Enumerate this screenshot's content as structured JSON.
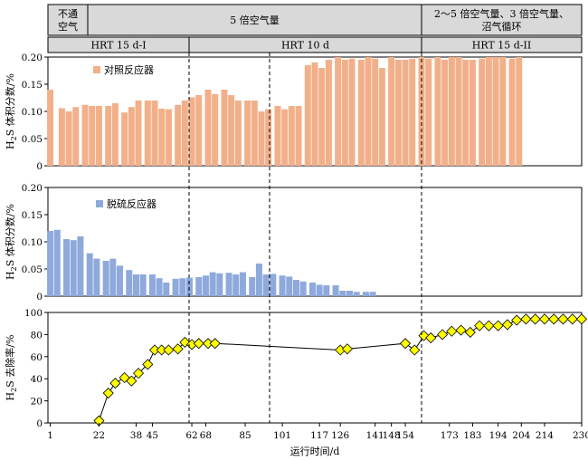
{
  "chart_data": {
    "type": "bar",
    "xlabel": "运行时间/d",
    "x_ticks": [
      1,
      22,
      38,
      45,
      62,
      68,
      85,
      101,
      117,
      126,
      141,
      148,
      154,
      173,
      183,
      194,
      204,
      214,
      230
    ],
    "x_tick_labels": [
      "1",
      "22",
      "38",
      "45",
      "62",
      "68",
      "85",
      "101",
      "117",
      "126",
      "141",
      "148",
      "154",
      "173",
      "183",
      "194",
      "204",
      "214",
      "230"
    ],
    "xlim": [
      0,
      230
    ],
    "condition_headers": [
      "不通\n空气",
      "5 倍空气量",
      "2～5 倍空气量、3 倍空气量、\n沼气循环"
    ],
    "hrt_headers": [
      "HRT 15 d-I",
      "HRT 10 d",
      "HRT 15 d-II"
    ],
    "panels": [
      {
        "type": "bar",
        "ylabel": "H2S 体积分数/%",
        "ylim": [
          0,
          0.2
        ],
        "yticks": [
          "0.20",
          "0.15",
          "0.10",
          "0.05",
          "0"
        ],
        "legend": "对照反应器",
        "color": "#F2B08A",
        "days": [
          1,
          6,
          9,
          12,
          16,
          19,
          22,
          26,
          29,
          33,
          36,
          39,
          43,
          46,
          49,
          52,
          56,
          59,
          62,
          65,
          69,
          72,
          76,
          79,
          82,
          86,
          89,
          92,
          95,
          99,
          102,
          105,
          108,
          112,
          115,
          118,
          121,
          125,
          128,
          131,
          135,
          138,
          141,
          144,
          148,
          151,
          154,
          157,
          161,
          164,
          168,
          171,
          174,
          177,
          180,
          183,
          187,
          190,
          193,
          196,
          200,
          203
        ],
        "values": [
          0.14,
          0.106,
          0.1,
          0.108,
          0.112,
          0.11,
          0.11,
          0.11,
          0.115,
          0.098,
          0.108,
          0.12,
          0.12,
          0.12,
          0.105,
          0.104,
          0.112,
          0.12,
          0.126,
          0.13,
          0.14,
          0.132,
          0.14,
          0.13,
          0.12,
          0.12,
          0.12,
          0.1,
          0.104,
          0.11,
          0.104,
          0.11,
          0.11,
          0.185,
          0.19,
          0.18,
          0.195,
          0.2,
          0.195,
          0.197,
          0.195,
          0.2,
          0.197,
          0.18,
          0.2,
          0.195,
          0.195,
          0.197,
          0.2,
          0.197,
          0.2,
          0.195,
          0.2,
          0.2,
          0.195,
          0.195,
          0.197,
          0.2,
          0.2,
          0.2,
          0.197,
          0.2
        ]
      },
      {
        "type": "bar",
        "ylabel": "H2S 体积分数/%",
        "ylim": [
          0,
          0.2
        ],
        "yticks": [
          "0.20",
          "0.15",
          "0.10",
          "0.05",
          "0"
        ],
        "legend": "脱硫反应器",
        "color": "#8EA9DB",
        "days": [
          1,
          4,
          8,
          11,
          14,
          18,
          21,
          25,
          28,
          31,
          35,
          38,
          41,
          45,
          48,
          51,
          55,
          58,
          61,
          65,
          68,
          71,
          74,
          78,
          81,
          84,
          88,
          91,
          94,
          97,
          101,
          104,
          107,
          110,
          114,
          117,
          120,
          124,
          127,
          130,
          133,
          137,
          140
        ],
        "values": [
          0.12,
          0.122,
          0.105,
          0.103,
          0.11,
          0.079,
          0.069,
          0.065,
          0.069,
          0.056,
          0.048,
          0.04,
          0.04,
          0.04,
          0.033,
          0.025,
          0.032,
          0.033,
          0.034,
          0.035,
          0.038,
          0.044,
          0.042,
          0.043,
          0.04,
          0.044,
          0.035,
          0.06,
          0.04,
          0.041,
          0.038,
          0.036,
          0.03,
          0.027,
          0.025,
          0.021,
          0.02,
          0.02,
          0.01,
          0.01,
          0.008,
          0.008,
          0.008
        ]
      },
      {
        "type": "line",
        "ylabel": "H2S 去除率/%",
        "ylim": [
          0,
          100
        ],
        "yticks": [
          "100",
          "80",
          "60",
          "40",
          "20",
          "0"
        ],
        "marker_color": "#FFFF00",
        "x": [
          22,
          26,
          29,
          33,
          36,
          39,
          43,
          46,
          49,
          52,
          56,
          59,
          62,
          65,
          69,
          72,
          126,
          129,
          154,
          158,
          162,
          165,
          170,
          174,
          178,
          182,
          186,
          190,
          194,
          198,
          202,
          206,
          210,
          214,
          218,
          222,
          226,
          230
        ],
        "y": [
          2,
          27,
          36,
          41,
          38,
          45,
          53,
          66,
          66,
          66,
          67,
          73,
          71,
          72,
          72,
          72,
          66,
          67,
          72,
          66,
          79,
          77,
          80,
          83,
          84,
          82,
          88,
          88,
          88,
          89,
          93,
          94,
          94,
          94,
          94,
          94,
          94,
          94
        ]
      }
    ],
    "phase_boundaries": [
      59,
      95,
      154
    ]
  }
}
